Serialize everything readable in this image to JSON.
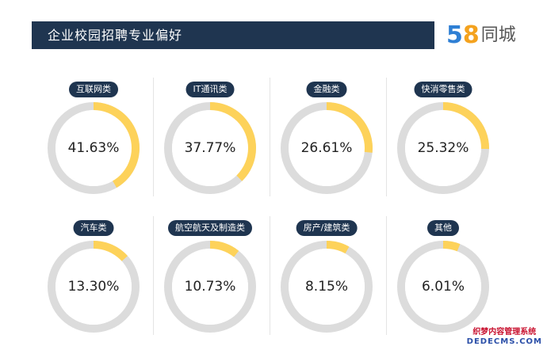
{
  "header": {
    "title": "企业校园招聘专业偏好"
  },
  "logo": {
    "number": "58",
    "text": "同城"
  },
  "colors": {
    "filled": "#fdd25a",
    "track": "#dcdcdc",
    "accent": "#1f3550"
  },
  "watermark": {
    "line1": "织梦内容管理系统",
    "line2": "DEDECMS.COM"
  },
  "chart_data": {
    "type": "pie",
    "title": "企业校园招聘专业偏好",
    "categories": [
      "互联网类",
      "IT通讯类",
      "金融类",
      "快消零售类",
      "汽车类",
      "航空航天及制造类",
      "房产/建筑类",
      "其他"
    ],
    "values": [
      41.63,
      37.77,
      26.61,
      25.32,
      13.3,
      10.73,
      8.15,
      6.01
    ],
    "labels": [
      "41.63%",
      "37.77%",
      "26.61%",
      "25.32%",
      "13.30%",
      "10.73%",
      "8.15%",
      "6.01%"
    ],
    "unit": "%"
  }
}
